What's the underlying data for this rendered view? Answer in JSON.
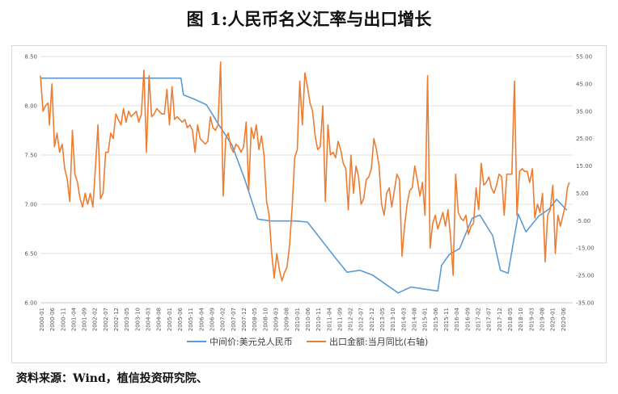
{
  "title": "图 1:人民币名义汇率与出口增长",
  "source": "资料来源：Wind，植信投资研究院、",
  "chart_data": {
    "type": "line",
    "left_axis": {
      "min": 6.0,
      "max": 8.5,
      "step": 0.5,
      "tick_labels": [
        "6.00",
        "6.50",
        "7.00",
        "7.50",
        "8.00",
        "8.50"
      ]
    },
    "right_axis": {
      "min": -35,
      "max": 55,
      "step": 10,
      "tick_labels": [
        "-35.00",
        "-25.00",
        "-15.00",
        "-5.00",
        "5.00",
        "15.00",
        "25.00",
        "35.00",
        "45.00",
        "55.00"
      ]
    },
    "x_labels": [
      "2000-01",
      "2000-06",
      "2000-11",
      "2001-04",
      "2001-09",
      "2002-02",
      "2002-07",
      "2002-12",
      "2003-05",
      "2003-10",
      "2004-03",
      "2004-08",
      "2005-01",
      "2005-06",
      "2005-11",
      "2006-04",
      "2006-09",
      "2007-02",
      "2007-07",
      "2007-12",
      "2008-05",
      "2008-10",
      "2009-03",
      "2009-08",
      "2010-01",
      "2010-06",
      "2010-11",
      "2011-04",
      "2011-09",
      "2012-02",
      "2012-07",
      "2012-12",
      "2013-05",
      "2013-10",
      "2014-03",
      "2014-08",
      "2015-01",
      "2015-06",
      "2015-11",
      "2016-04",
      "2016-09",
      "2017-02",
      "2017-07",
      "2017-12",
      "2018-05",
      "2018-10",
      "2019-03",
      "2019-08",
      "2020-01",
      "2020-06"
    ],
    "series": [
      {
        "name": "中间价:美元兑人民币",
        "axis": "left",
        "color": "#5b9bd5",
        "points": [
          [
            2000.0,
            8.28
          ],
          [
            2005.5,
            8.28
          ],
          [
            2005.6,
            8.11
          ],
          [
            2006.0,
            8.07
          ],
          [
            2006.5,
            8.01
          ],
          [
            2007.0,
            7.8
          ],
          [
            2007.5,
            7.6
          ],
          [
            2008.0,
            7.25
          ],
          [
            2008.5,
            6.85
          ],
          [
            2009.0,
            6.83
          ],
          [
            2009.5,
            6.83
          ],
          [
            2010.0,
            6.83
          ],
          [
            2010.45,
            6.82
          ],
          [
            2010.9,
            6.67
          ],
          [
            2011.5,
            6.47
          ],
          [
            2012.0,
            6.31
          ],
          [
            2012.5,
            6.33
          ],
          [
            2013.0,
            6.28
          ],
          [
            2013.5,
            6.19
          ],
          [
            2014.0,
            6.1
          ],
          [
            2014.5,
            6.16
          ],
          [
            2015.0,
            6.14
          ],
          [
            2015.55,
            6.12
          ],
          [
            2015.7,
            6.38
          ],
          [
            2016.0,
            6.49
          ],
          [
            2016.4,
            6.55
          ],
          [
            2016.9,
            6.86
          ],
          [
            2017.2,
            6.89
          ],
          [
            2017.7,
            6.68
          ],
          [
            2018.0,
            6.33
          ],
          [
            2018.3,
            6.3
          ],
          [
            2018.7,
            6.9
          ],
          [
            2019.0,
            6.72
          ],
          [
            2019.5,
            6.88
          ],
          [
            2019.9,
            6.95
          ],
          [
            2020.2,
            7.05
          ],
          [
            2020.6,
            6.94
          ]
        ]
      },
      {
        "name": "出口金额:当月同比(右轴)",
        "axis": "right",
        "color": "#ed7d31",
        "points": [
          [
            2000.0,
            48
          ],
          [
            2000.1,
            35
          ],
          [
            2000.2,
            37
          ],
          [
            2000.3,
            38
          ],
          [
            2000.35,
            30
          ],
          [
            2000.45,
            45
          ],
          [
            2000.55,
            22
          ],
          [
            2000.65,
            27
          ],
          [
            2000.75,
            20
          ],
          [
            2000.85,
            23
          ],
          [
            2000.95,
            14
          ],
          [
            2001.05,
            10
          ],
          [
            2001.15,
            2
          ],
          [
            2001.25,
            28
          ],
          [
            2001.35,
            12
          ],
          [
            2001.45,
            9
          ],
          [
            2001.55,
            3
          ],
          [
            2001.65,
            0
          ],
          [
            2001.75,
            5
          ],
          [
            2001.85,
            1
          ],
          [
            2001.95,
            5
          ],
          [
            2002.05,
            0
          ],
          [
            2002.15,
            14
          ],
          [
            2002.25,
            30
          ],
          [
            2002.35,
            3
          ],
          [
            2002.45,
            5
          ],
          [
            2002.55,
            20
          ],
          [
            2002.65,
            20
          ],
          [
            2002.75,
            27
          ],
          [
            2002.85,
            25
          ],
          [
            2002.95,
            34
          ],
          [
            2003.05,
            32
          ],
          [
            2003.15,
            30
          ],
          [
            2003.25,
            36
          ],
          [
            2003.35,
            31
          ],
          [
            2003.45,
            35
          ],
          [
            2003.55,
            33
          ],
          [
            2003.65,
            34
          ],
          [
            2003.75,
            35
          ],
          [
            2003.85,
            31
          ],
          [
            2003.95,
            34
          ],
          [
            2004.05,
            50
          ],
          [
            2004.15,
            20
          ],
          [
            2004.25,
            48
          ],
          [
            2004.35,
            33
          ],
          [
            2004.45,
            34
          ],
          [
            2004.55,
            36
          ],
          [
            2004.65,
            35
          ],
          [
            2004.75,
            34
          ],
          [
            2004.85,
            34
          ],
          [
            2004.95,
            43
          ],
          [
            2005.05,
            30
          ],
          [
            2005.15,
            44
          ],
          [
            2005.25,
            32
          ],
          [
            2005.35,
            33
          ],
          [
            2005.45,
            32
          ],
          [
            2005.55,
            31
          ],
          [
            2005.65,
            32
          ],
          [
            2005.75,
            29
          ],
          [
            2005.85,
            30
          ],
          [
            2005.95,
            28
          ],
          [
            2006.05,
            20
          ],
          [
            2006.15,
            30
          ],
          [
            2006.25,
            25
          ],
          [
            2006.35,
            24
          ],
          [
            2006.45,
            23
          ],
          [
            2006.55,
            24
          ],
          [
            2006.65,
            33
          ],
          [
            2006.75,
            29
          ],
          [
            2006.85,
            28
          ],
          [
            2006.95,
            30
          ],
          [
            2007.05,
            53
          ],
          [
            2007.15,
            4
          ],
          [
            2007.25,
            25
          ],
          [
            2007.35,
            27
          ],
          [
            2007.45,
            22
          ],
          [
            2007.55,
            20
          ],
          [
            2007.65,
            23
          ],
          [
            2007.75,
            22
          ],
          [
            2007.85,
            20
          ],
          [
            2007.95,
            22
          ],
          [
            2008.05,
            31
          ],
          [
            2008.15,
            6
          ],
          [
            2008.25,
            29
          ],
          [
            2008.35,
            25
          ],
          [
            2008.45,
            30
          ],
          [
            2008.55,
            21
          ],
          [
            2008.65,
            26
          ],
          [
            2008.75,
            19
          ],
          [
            2008.85,
            2
          ],
          [
            2008.95,
            -3
          ],
          [
            2009.05,
            -17
          ],
          [
            2009.15,
            -26
          ],
          [
            2009.25,
            -17
          ],
          [
            2009.35,
            -23
          ],
          [
            2009.45,
            -27
          ],
          [
            2009.55,
            -24
          ],
          [
            2009.65,
            -22
          ],
          [
            2009.75,
            -14
          ],
          [
            2009.85,
            0
          ],
          [
            2009.95,
            18
          ],
          [
            2010.05,
            21
          ],
          [
            2010.15,
            46
          ],
          [
            2010.25,
            30
          ],
          [
            2010.35,
            49
          ],
          [
            2010.45,
            44
          ],
          [
            2010.55,
            38
          ],
          [
            2010.65,
            35
          ],
          [
            2010.75,
            26
          ],
          [
            2010.85,
            21
          ],
          [
            2010.95,
            22
          ],
          [
            2011.05,
            37
          ],
          [
            2011.15,
            2
          ],
          [
            2011.25,
            30
          ],
          [
            2011.35,
            19
          ],
          [
            2011.45,
            20
          ],
          [
            2011.55,
            18
          ],
          [
            2011.65,
            24
          ],
          [
            2011.75,
            21
          ],
          [
            2011.85,
            16
          ],
          [
            2011.95,
            14
          ],
          [
            2012.05,
            -1
          ],
          [
            2012.15,
            19
          ],
          [
            2012.25,
            5
          ],
          [
            2012.35,
            15
          ],
          [
            2012.45,
            11
          ],
          [
            2012.55,
            1
          ],
          [
            2012.65,
            3
          ],
          [
            2012.75,
            10
          ],
          [
            2012.85,
            11
          ],
          [
            2012.95,
            14
          ],
          [
            2013.05,
            25
          ],
          [
            2013.15,
            21
          ],
          [
            2013.25,
            15
          ],
          [
            2013.35,
            1
          ],
          [
            2013.45,
            -3
          ],
          [
            2013.55,
            5
          ],
          [
            2013.65,
            7
          ],
          [
            2013.75,
            0
          ],
          [
            2013.85,
            6
          ],
          [
            2013.95,
            12
          ],
          [
            2014.05,
            10
          ],
          [
            2014.15,
            -18
          ],
          [
            2014.25,
            -7
          ],
          [
            2014.35,
            1
          ],
          [
            2014.45,
            6
          ],
          [
            2014.55,
            7
          ],
          [
            2014.65,
            15
          ],
          [
            2014.75,
            10
          ],
          [
            2014.85,
            4
          ],
          [
            2014.95,
            9
          ],
          [
            2015.05,
            -3
          ],
          [
            2015.15,
            48
          ],
          [
            2015.25,
            -15
          ],
          [
            2015.35,
            -6
          ],
          [
            2015.45,
            -3
          ],
          [
            2015.55,
            -8
          ],
          [
            2015.65,
            -5
          ],
          [
            2015.75,
            -2
          ],
          [
            2015.85,
            -7
          ],
          [
            2015.95,
            -1
          ],
          [
            2016.05,
            -11
          ],
          [
            2016.15,
            -25
          ],
          [
            2016.25,
            12
          ],
          [
            2016.35,
            -2
          ],
          [
            2016.45,
            -4
          ],
          [
            2016.55,
            -5
          ],
          [
            2016.65,
            -3
          ],
          [
            2016.75,
            -10
          ],
          [
            2016.85,
            -7
          ],
          [
            2016.95,
            -6
          ],
          [
            2017.05,
            7
          ],
          [
            2017.15,
            -1
          ],
          [
            2017.25,
            16
          ],
          [
            2017.35,
            8
          ],
          [
            2017.45,
            9
          ],
          [
            2017.55,
            11
          ],
          [
            2017.65,
            7
          ],
          [
            2017.75,
            5
          ],
          [
            2017.85,
            8
          ],
          [
            2017.95,
            12
          ],
          [
            2018.05,
            11
          ],
          [
            2018.15,
            -3
          ],
          [
            2018.25,
            12
          ],
          [
            2018.35,
            12
          ],
          [
            2018.45,
            12
          ],
          [
            2018.55,
            46
          ],
          [
            2018.65,
            -3
          ],
          [
            2018.75,
            13
          ],
          [
            2018.85,
            14
          ],
          [
            2018.95,
            13
          ],
          [
            2019.05,
            13
          ],
          [
            2019.15,
            9
          ],
          [
            2019.25,
            14
          ],
          [
            2019.35,
            -4
          ],
          [
            2019.45,
            1
          ],
          [
            2019.55,
            -2
          ],
          [
            2019.65,
            5
          ],
          [
            2019.75,
            -20
          ],
          [
            2019.85,
            -3
          ],
          [
            2019.95,
            -1
          ],
          [
            2020.05,
            8
          ],
          [
            2020.15,
            -17
          ],
          [
            2020.25,
            -3
          ],
          [
            2020.35,
            -7
          ],
          [
            2020.45,
            -3
          ],
          [
            2020.55,
            1
          ],
          [
            2020.62,
            7
          ],
          [
            2020.7,
            9
          ]
        ]
      }
    ],
    "legend_position": "bottom"
  }
}
